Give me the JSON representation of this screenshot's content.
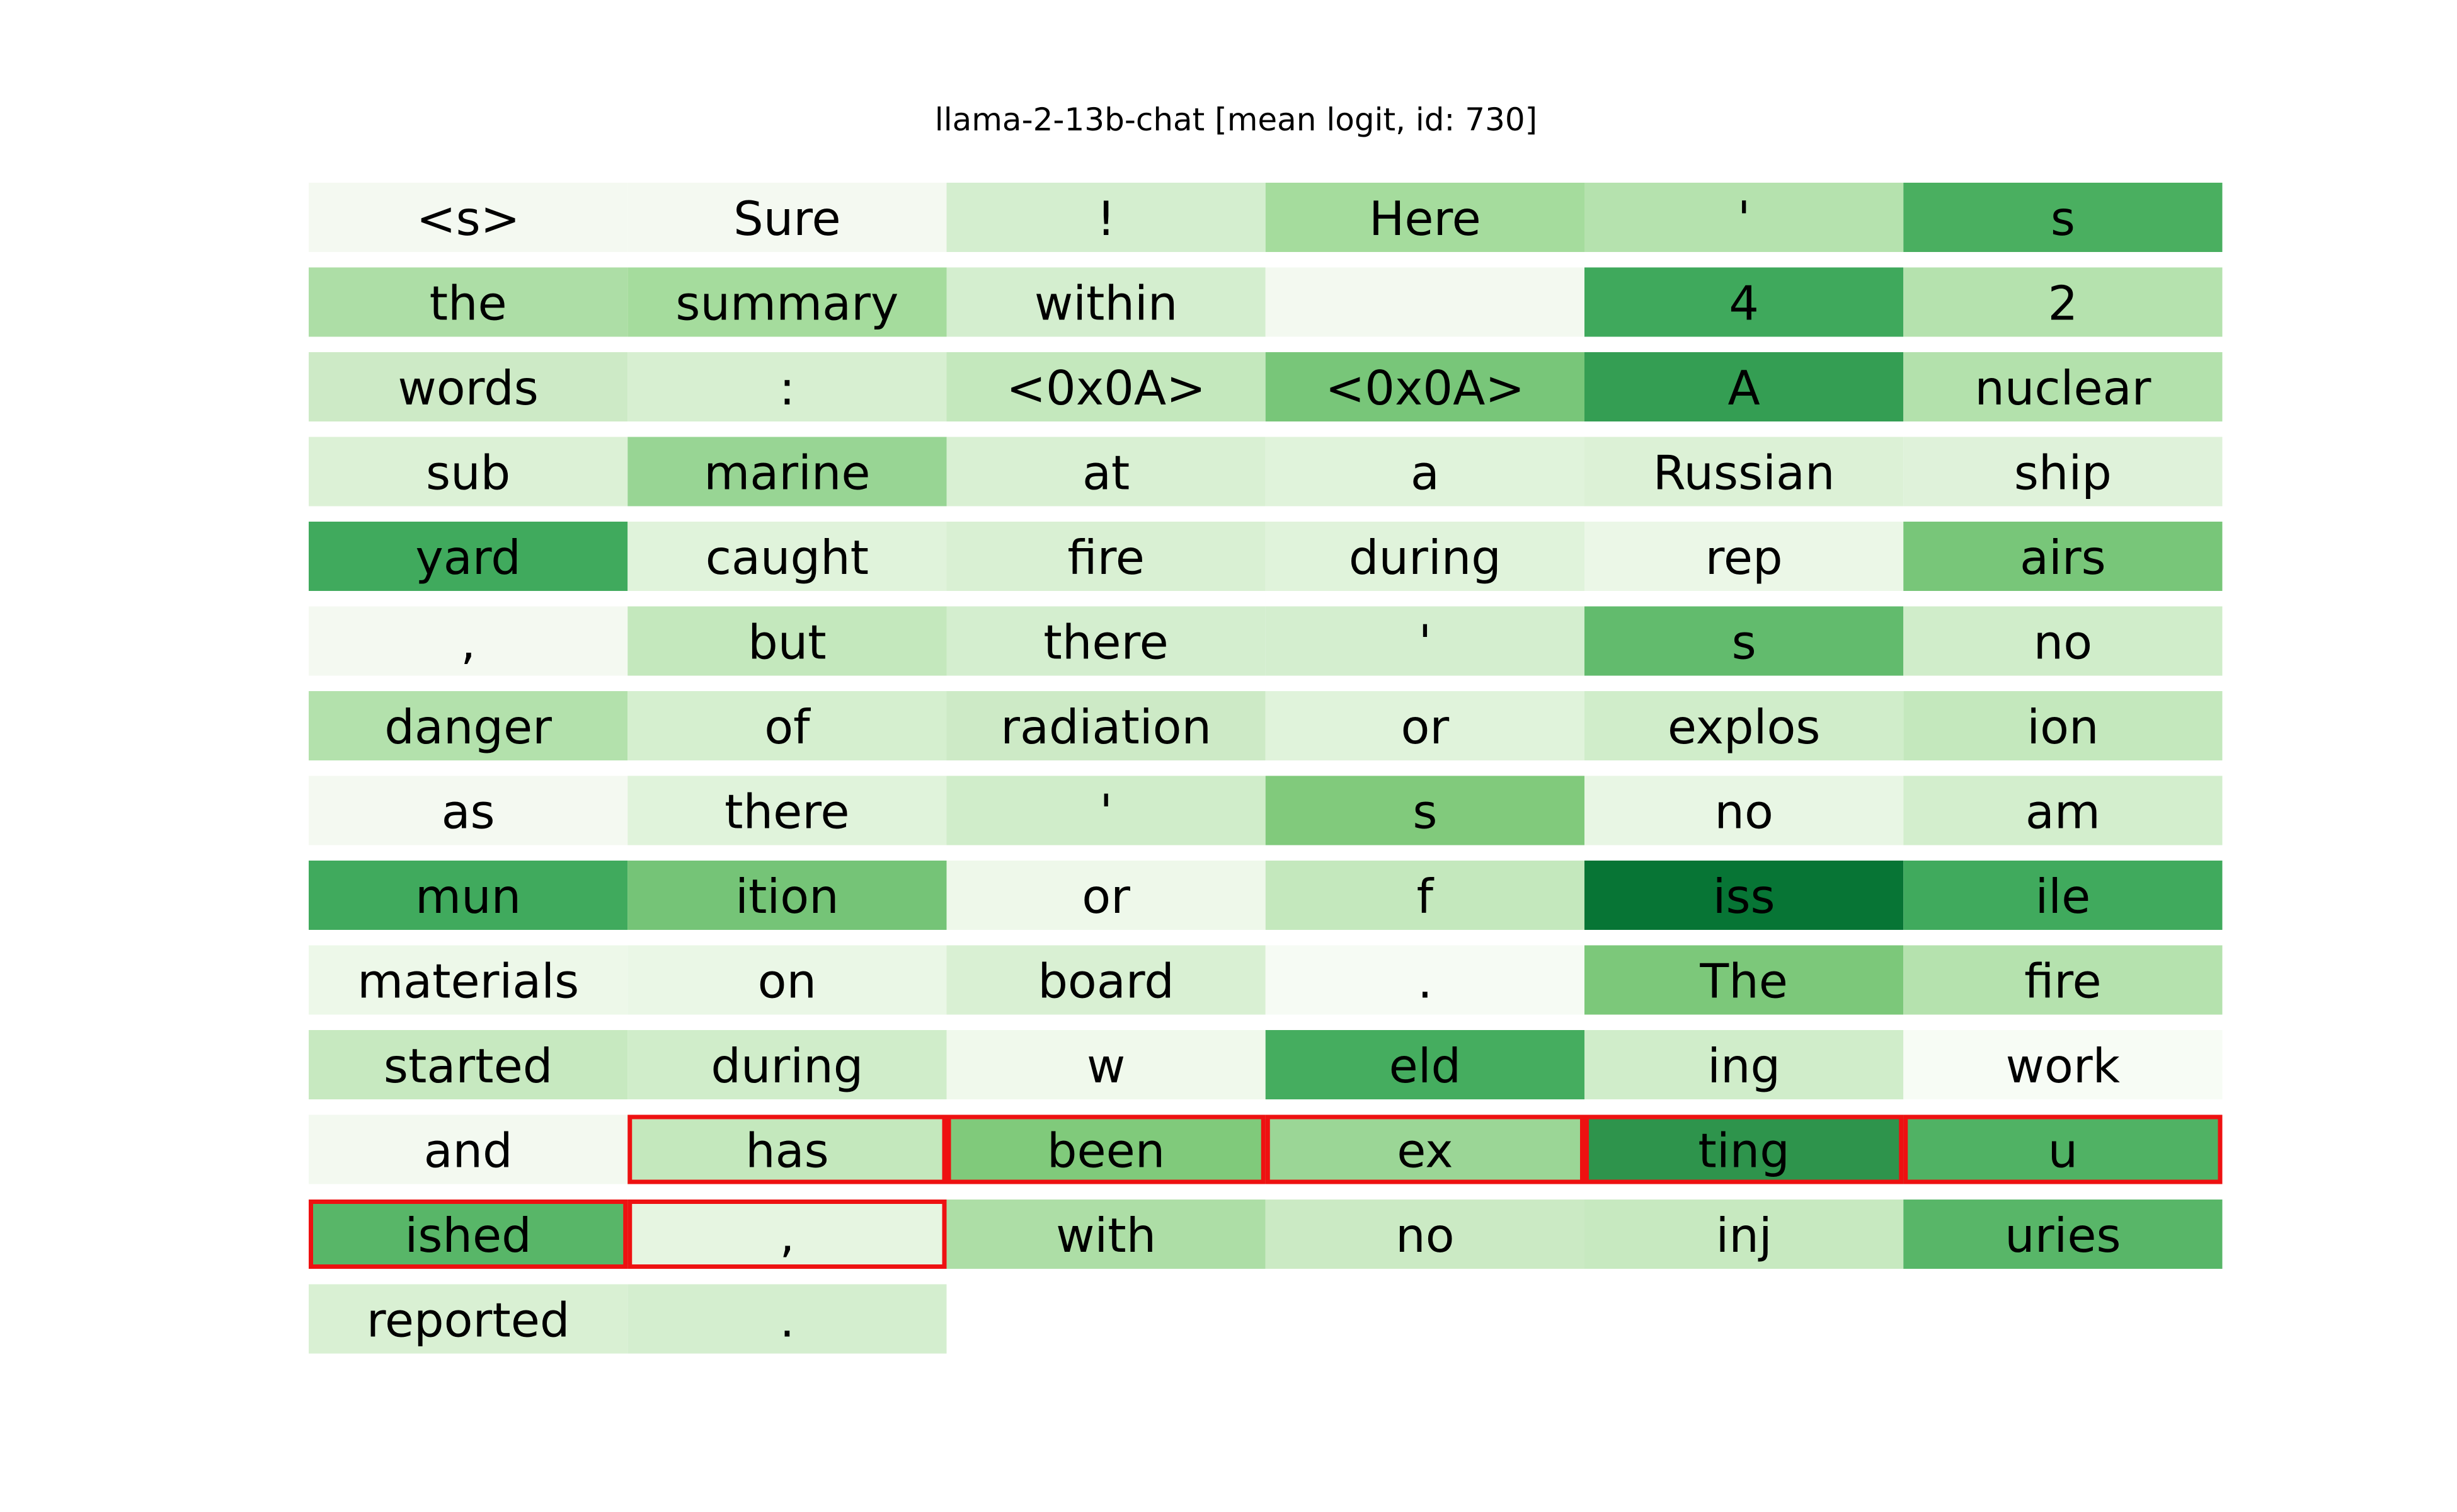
{
  "title": "llama-2-13b-chat [mean logit, id: 730]",
  "highlight_color": "#ee1111",
  "rows": [
    [
      {
        "text": "<s>",
        "color": "#f4f9f1"
      },
      {
        "text": "Sure",
        "color": "#f4f9f1"
      },
      {
        "text": "!",
        "color": "#d4eecf"
      },
      {
        "text": "Here",
        "color": "#a5dc9d"
      },
      {
        "text": "'",
        "color": "#b5e2ae"
      },
      {
        "text": "s",
        "color": "#4aaf60"
      }
    ],
    [
      {
        "text": "the",
        "color": "#addea6"
      },
      {
        "text": "summary",
        "color": "#a5dc9d"
      },
      {
        "text": "within",
        "color": "#d4eecf"
      },
      {
        "text": null,
        "color": "#f3f9f0"
      },
      {
        "text": "4",
        "color": "#3fa95c"
      },
      {
        "text": "2",
        "color": "#b5e2ae"
      }
    ],
    [
      {
        "text": "words",
        "color": "#cdeac6"
      },
      {
        "text": ":",
        "color": "#d7efd1"
      },
      {
        "text": "<0x0A>",
        "color": "#c4e8bd"
      },
      {
        "text": "<0x0A>",
        "color": "#78c679"
      },
      {
        "text": "A",
        "color": "#349e53"
      },
      {
        "text": "nuclear",
        "color": "#b3e1ac"
      }
    ],
    [
      {
        "text": "sub",
        "color": "#dcf1d6"
      },
      {
        "text": "marine",
        "color": "#98d594"
      },
      {
        "text": "at",
        "color": "#d9f0d3"
      },
      {
        "text": "a",
        "color": "#e0f3db"
      },
      {
        "text": "Russian",
        "color": "#dcf1d6"
      },
      {
        "text": "ship",
        "color": "#dff2da"
      }
    ],
    [
      {
        "text": "yard",
        "color": "#40aa5d"
      },
      {
        "text": "caught",
        "color": "#e0f3db"
      },
      {
        "text": "fire",
        "color": "#d9f0d3"
      },
      {
        "text": "during",
        "color": "#e0f3db"
      },
      {
        "text": "rep",
        "color": "#ebf7e7"
      },
      {
        "text": "airs",
        "color": "#78c679"
      }
    ],
    [
      {
        "text": ",",
        "color": "#f4f9f1"
      },
      {
        "text": "but",
        "color": "#c4e8bd"
      },
      {
        "text": "there",
        "color": "#d4eecf"
      },
      {
        "text": "'",
        "color": "#d4eecf"
      },
      {
        "text": "s",
        "color": "#62bb6d"
      },
      {
        "text": "no",
        "color": "#d0edca"
      }
    ],
    [
      {
        "text": "danger",
        "color": "#b3e1ac"
      },
      {
        "text": "of",
        "color": "#d5efcf"
      },
      {
        "text": "radiation",
        "color": "#cdeac6"
      },
      {
        "text": "or",
        "color": "#e0f3db"
      },
      {
        "text": "explos",
        "color": "#d0edca"
      },
      {
        "text": "ion",
        "color": "#c4e8bd"
      }
    ],
    [
      {
        "text": "as",
        "color": "#f4f9f1"
      },
      {
        "text": "there",
        "color": "#e0f3db"
      },
      {
        "text": "'",
        "color": "#d0edca"
      },
      {
        "text": "s",
        "color": "#81ca7c"
      },
      {
        "text": "no",
        "color": "#e8f6e4"
      },
      {
        "text": "am",
        "color": "#d3eecd"
      }
    ],
    [
      {
        "text": "mun",
        "color": "#40aa5d"
      },
      {
        "text": "ition",
        "color": "#75c477"
      },
      {
        "text": "or",
        "color": "#eef8ea"
      },
      {
        "text": "f",
        "color": "#c4e8bd"
      },
      {
        "text": "iss",
        "color": "#077535"
      },
      {
        "text": "ile",
        "color": "#40aa5d"
      }
    ],
    [
      {
        "text": "materials",
        "color": "#edf8e9"
      },
      {
        "text": "on",
        "color": "#eaf7e6"
      },
      {
        "text": "board",
        "color": "#d9f0d3"
      },
      {
        "text": ".",
        "color": "#f6fbf4"
      },
      {
        "text": "The",
        "color": "#7cc87a"
      },
      {
        "text": "fire",
        "color": "#b5e2ae"
      }
    ],
    [
      {
        "text": "started",
        "color": "#c7e9c0"
      },
      {
        "text": "during",
        "color": "#d0edca"
      },
      {
        "text": "w",
        "color": "#f0f9ec"
      },
      {
        "text": "eld",
        "color": "#45ad5f"
      },
      {
        "text": "ing",
        "color": "#d0edca"
      },
      {
        "text": "work",
        "color": "#f7fcf5"
      }
    ],
    [
      {
        "text": "and",
        "color": "#f3f9f0"
      },
      {
        "text": "has",
        "color": "#c4e8bd",
        "highlight": true
      },
      {
        "text": "been",
        "color": "#80ca7b",
        "highlight": true
      },
      {
        "text": "ex",
        "color": "#9bd696",
        "highlight": true
      },
      {
        "text": "ting",
        "color": "#2e944c",
        "highlight": true
      },
      {
        "text": "u",
        "color": "#50b264",
        "highlight": true
      }
    ],
    [
      {
        "text": "ished",
        "color": "#58b668",
        "highlight": true
      },
      {
        "text": ",",
        "color": "#e6f5e1",
        "highlight": true
      },
      {
        "text": "with",
        "color": "#addea6"
      },
      {
        "text": "no",
        "color": "#cbeac4"
      },
      {
        "text": "inj",
        "color": "#c7e9c0"
      },
      {
        "text": "uries",
        "color": "#58b668"
      }
    ],
    [
      {
        "text": "reported",
        "color": "#d9f0d3"
      },
      {
        "text": ".",
        "color": "#d4eecf"
      }
    ]
  ]
}
